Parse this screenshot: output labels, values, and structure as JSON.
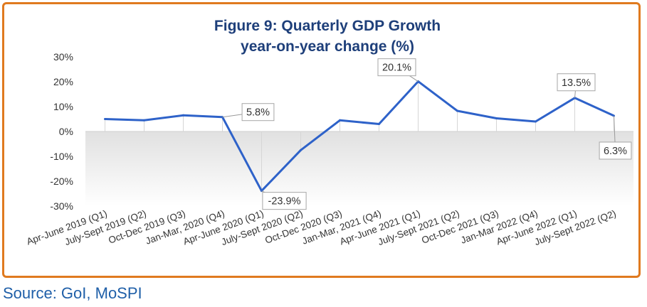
{
  "colors": {
    "line": "#2e62c9",
    "title": "#1e3f7a",
    "frame": "#e07a1f",
    "source": "#1f5fa8",
    "axis_text": "#333333"
  },
  "source_text": "Source: GoI, MoSPI",
  "chart_data": {
    "type": "line",
    "title": "Figure 9: Quarterly GDP Growth",
    "subtitle": "year-on-year change (%)",
    "xlabel": "",
    "ylabel": "",
    "ylim": [
      -30,
      30
    ],
    "yticks": [
      30,
      20,
      10,
      0,
      -10,
      -20,
      -30
    ],
    "ytick_labels": [
      "30%",
      "20%",
      "10%",
      "0%",
      "-10%",
      "-20%",
      "-30%"
    ],
    "grid": false,
    "categories": [
      "Apr-June 2019 (Q1)",
      "July-Sept 2019 (Q2)",
      "Oct-Dec 2019 (Q3)",
      "Jan-Mar, 2020 (Q4)",
      "Apr-June 2020 (Q1)",
      "July-Sept 2020 (Q2)",
      "Oct-Dec 2020 (Q3)",
      "Jan-Mar, 2021 (Q4)",
      "Apr-June 2021 (Q1)",
      "July-Sept 2021 (Q2)",
      "Oct-Dec 2021 (Q3)",
      "Jan-Mar 2022 (Q4)",
      "Apr-June 2022 (Q1)",
      "July-Sept 2022 (Q2)"
    ],
    "series": [
      {
        "values": [
          5.0,
          4.5,
          6.5,
          5.8,
          -23.9,
          -7.5,
          4.5,
          3.0,
          20.1,
          8.3,
          5.3,
          4.0,
          13.5,
          6.3
        ]
      }
    ],
    "annotations": [
      {
        "index": 3,
        "text": "5.8%"
      },
      {
        "index": 4,
        "text": "-23.9%"
      },
      {
        "index": 8,
        "text": "20.1%"
      },
      {
        "index": 12,
        "text": "13.5%"
      },
      {
        "index": 13,
        "text": "6.3%"
      }
    ]
  }
}
